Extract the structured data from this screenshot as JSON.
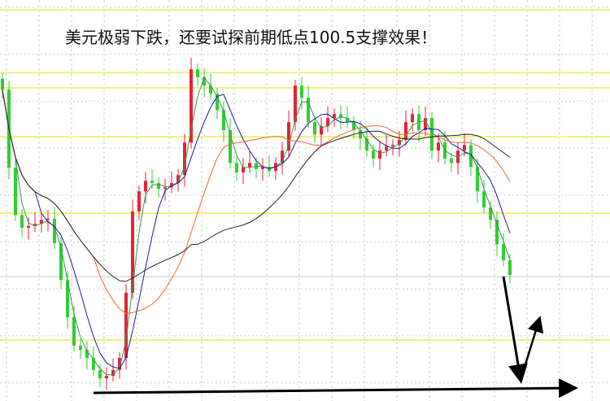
{
  "chart_data": {
    "type": "candlestick",
    "title": "美元极弱下跌，还要试探前期低点100.5支撑效果！",
    "ylim": [
      0,
      110
    ],
    "grid": true,
    "closes": [
      85.4,
      64,
      51,
      47.5,
      48,
      48.6,
      49.7,
      50,
      43.3,
      33.2,
      23,
      15.2,
      14,
      11.8,
      8.5,
      6.2,
      6.9,
      8.5,
      11.8,
      29.7,
      52,
      57.5,
      60.4,
      59.8,
      58.2,
      58.6,
      59.8,
      62,
      70.9,
      91,
      88.8,
      86.5,
      84.3,
      79.8,
      74.3,
      65.3,
      62.7,
      64.2,
      65.3,
      63.6,
      64.2,
      63.1,
      65.3,
      68.7,
      76.5,
      86.5,
      83.2,
      76.5,
      73.1,
      75.4,
      77.6,
      78.7,
      77.6,
      76.5,
      74.3,
      72,
      68.7,
      66.5,
      68.7,
      69.8,
      70.2,
      71.6,
      76.5,
      78.7,
      74.3,
      77.6,
      68.7,
      70.9,
      66.5,
      65.3,
      68.7,
      70.2,
      64.2,
      57.5,
      53.1,
      49.7,
      43,
      38.6,
      34.6
    ],
    "moving_average_periods": [
      3,
      6,
      15,
      30
    ],
    "horizontal_levels": [
      107.3,
      90.1,
      85.9,
      72.5,
      51.5,
      16.7
    ],
    "reference_level": 34.1,
    "colors": {
      "up": "#e8213a",
      "down": "#33cc33",
      "ma": [
        "#2e9e4a",
        "#1a1a9c",
        "#f06a2a",
        "#222222"
      ],
      "levels": "#f5f07a",
      "reference": "#c8c8c8",
      "grid": "#cfcfcf",
      "arrow": "#000000"
    }
  }
}
